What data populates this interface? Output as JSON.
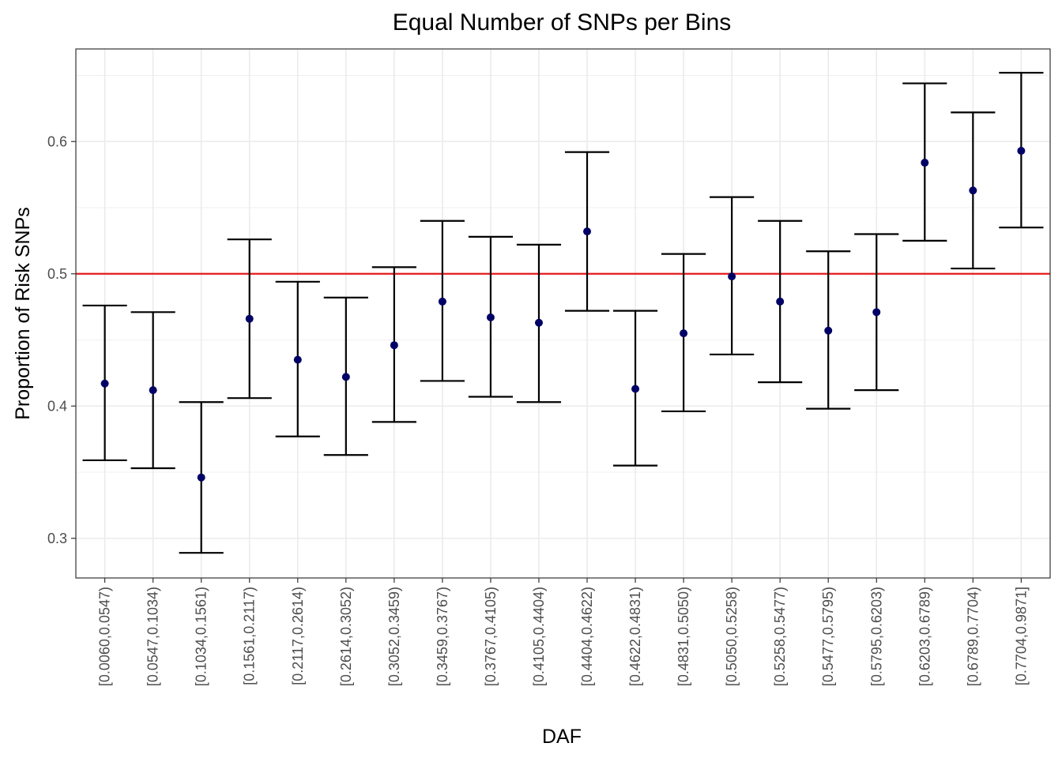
{
  "chart_data": {
    "type": "scatter",
    "title": "Equal Number of SNPs per Bins",
    "xlabel": "DAF",
    "ylabel": "Proportion of Risk SNPs",
    "ylim": [
      0.27,
      0.67
    ],
    "y_ticks": [
      0.3,
      0.4,
      0.5,
      0.6
    ],
    "y_tick_labels": [
      "0.3",
      "0.4",
      "0.5",
      "0.6"
    ],
    "grid": true,
    "reference_line": {
      "y": 0.5,
      "color": "#e41a1c"
    },
    "point_color": "#000066",
    "errorbar_color": "#000000",
    "categories": [
      "[0.0060,0.0547)",
      "[0.0547,0.1034)",
      "[0.1034,0.1561)",
      "[0.1561,0.2117)",
      "[0.2117,0.2614)",
      "[0.2614,0.3052)",
      "[0.3052,0.3459)",
      "[0.3459,0.3767)",
      "[0.3767,0.4105)",
      "[0.4105,0.4404)",
      "[0.4404,0.4622)",
      "[0.4622,0.4831)",
      "[0.4831,0.5050)",
      "[0.5050,0.5258)",
      "[0.5258,0.5477)",
      "[0.5477,0.5795)",
      "[0.5795,0.6203)",
      "[0.6203,0.6789)",
      "[0.6789,0.7704)",
      "[0.7704,0.9871]"
    ],
    "values": [
      0.417,
      0.412,
      0.346,
      0.466,
      0.435,
      0.422,
      0.446,
      0.479,
      0.467,
      0.463,
      0.532,
      0.413,
      0.455,
      0.498,
      0.479,
      0.457,
      0.471,
      0.584,
      0.563,
      0.593
    ],
    "lower": [
      0.359,
      0.353,
      0.289,
      0.406,
      0.377,
      0.363,
      0.388,
      0.419,
      0.407,
      0.403,
      0.472,
      0.355,
      0.396,
      0.439,
      0.418,
      0.398,
      0.412,
      0.525,
      0.504,
      0.535
    ],
    "upper": [
      0.476,
      0.471,
      0.403,
      0.526,
      0.494,
      0.482,
      0.505,
      0.54,
      0.528,
      0.522,
      0.592,
      0.472,
      0.515,
      0.558,
      0.54,
      0.517,
      0.53,
      0.644,
      0.622,
      0.652
    ]
  }
}
